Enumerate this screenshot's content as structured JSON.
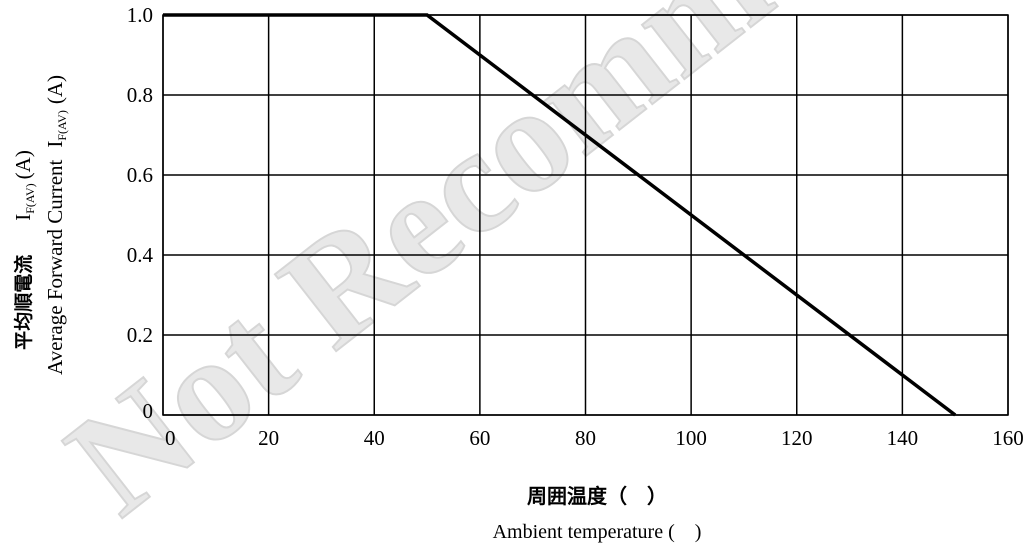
{
  "watermark": "Not Recommended",
  "chart_data": {
    "type": "line",
    "x": [
      0,
      50,
      150
    ],
    "series": [
      {
        "values": [
          1.0,
          1.0,
          0
        ]
      }
    ],
    "xlim": [
      0,
      160
    ],
    "ylim": [
      0,
      1.0
    ],
    "x_ticks": [
      "0",
      "20",
      "40",
      "60",
      "80",
      "100",
      "120",
      "140",
      "160"
    ],
    "y_ticks": [
      "0",
      "0.2",
      "0.4",
      "0.6",
      "0.8",
      "1.0"
    ],
    "grid": true,
    "ylabel_jp": "平均順電流",
    "ylabel_jp_symbol": "I",
    "ylabel_jp_sub": "F(AV)",
    "ylabel_jp_unit": "(A)",
    "ylabel_en": "Average  Forward  Current",
    "ylabel_en_symbol": "I",
    "ylabel_en_sub": "F(AV)",
    "ylabel_en_unit": "(A)",
    "xlabel_jp": "周囲温度（　）",
    "xlabel_en": "Ambient temperature (　)"
  }
}
